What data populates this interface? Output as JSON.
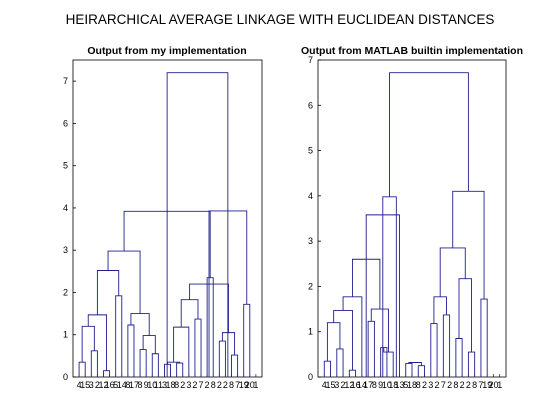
{
  "figure": {
    "title": "HEIRARCHICAL AVERAGE LINKAGE WITH EUCLIDEAN DISTANCES"
  },
  "chart_data": [
    {
      "type": "dendrogram",
      "title": "Output from my implementation",
      "xlabel": "",
      "ylabel": "",
      "ylim": [
        0,
        7.5
      ],
      "yticks": [
        0,
        1,
        2,
        3,
        4,
        5,
        6,
        7
      ],
      "leaf_labels": [
        "4",
        "15",
        "3",
        "2",
        "12",
        "16",
        "5",
        "14",
        "8",
        "17",
        "8",
        "9",
        "10",
        "11",
        "3",
        "18",
        "8",
        "2",
        "3",
        "2",
        "7",
        "2",
        "8",
        "2",
        "2",
        "8",
        "7",
        "19",
        "20",
        "1"
      ],
      "link_color": "#1f1f8f",
      "links": [
        {
          "x": [
            1,
            2
          ],
          "h": 0.35
        },
        {
          "x": [
            3,
            4
          ],
          "h": 0.62
        },
        {
          "x": [
            1.5,
            3.5
          ],
          "h": 1.2
        },
        {
          "x": [
            5,
            6
          ],
          "h": 0.15
        },
        {
          "x": [
            2.5,
            5.5
          ],
          "h": 1.47
        },
        {
          "x": [
            7,
            8
          ],
          "h": 1.92
        },
        {
          "x": [
            4,
            7.5
          ],
          "h": 2.52
        },
        {
          "x": [
            9,
            10
          ],
          "h": 1.23
        },
        {
          "x": [
            11,
            12
          ],
          "h": 0.65
        },
        {
          "x": [
            13,
            14
          ],
          "h": 0.55
        },
        {
          "x": [
            11.5,
            13.5
          ],
          "h": 0.98
        },
        {
          "x": [
            9.5,
            12.5
          ],
          "h": 1.5
        },
        {
          "x": [
            5.75,
            11
          ],
          "h": 2.98
        },
        {
          "x": [
            15,
            16
          ],
          "h": 0.3
        },
        {
          "x": [
            17,
            18
          ],
          "h": 0.33
        },
        {
          "x": [
            15.5,
            17.5
          ],
          "h": 0.35
        },
        {
          "x": [
            16.5,
            19
          ],
          "h": 1.18
        },
        {
          "x": [
            20,
            21
          ],
          "h": 1.37
        },
        {
          "x": [
            17.75,
            20.5
          ],
          "h": 1.83
        },
        {
          "x": [
            22,
            23
          ],
          "h": 2.35
        },
        {
          "x": [
            8.375,
            22.5
          ],
          "h": 3.92
        },
        {
          "x": [
            24,
            25
          ],
          "h": 0.85
        },
        {
          "x": [
            26,
            27
          ],
          "h": 0.52
        },
        {
          "x": [
            24.5,
            26.5
          ],
          "h": 1.05
        },
        {
          "x": [
            28,
            29
          ],
          "h": 1.72
        },
        {
          "x": [
            19.125,
            25.5
          ],
          "h": 2.2
        },
        {
          "x": [
            22.31,
            28.5
          ],
          "h": 3.93
        },
        {
          "x": [
            15.44,
            25.4
          ],
          "h": 7.2
        }
      ]
    },
    {
      "type": "dendrogram",
      "title": "Output from MATLAB builtin implementation",
      "xlabel": "",
      "ylabel": "",
      "ylim": [
        0,
        7
      ],
      "yticks": [
        0,
        1,
        2,
        3,
        4,
        5,
        6,
        7
      ],
      "leaf_labels": [
        "4",
        "15",
        "3",
        "2",
        "12",
        "16",
        "14",
        "17",
        "8",
        "9",
        "10",
        "18",
        "13",
        "5",
        "18",
        "8",
        "2",
        "3",
        "2",
        "7",
        "2",
        "8",
        "2",
        "2",
        "8",
        "7",
        "19",
        "20",
        "1"
      ],
      "link_color": "#1f1f8f",
      "links": [
        {
          "x": [
            1,
            2
          ],
          "h": 0.35
        },
        {
          "x": [
            3,
            4
          ],
          "h": 0.62
        },
        {
          "x": [
            1.5,
            3.5
          ],
          "h": 1.2
        },
        {
          "x": [
            5,
            6
          ],
          "h": 0.15
        },
        {
          "x": [
            2.5,
            5.5
          ],
          "h": 1.47
        },
        {
          "x": [
            4,
            7
          ],
          "h": 1.77
        },
        {
          "x": [
            8,
            9
          ],
          "h": 1.23
        },
        {
          "x": [
            10,
            11
          ],
          "h": 0.65
        },
        {
          "x": [
            10.5,
            12
          ],
          "h": 0.55
        },
        {
          "x": [
            8.5,
            11.25
          ],
          "h": 1.5
        },
        {
          "x": [
            5.5,
            9.875
          ],
          "h": 2.6
        },
        {
          "x": [
            7.69,
            13
          ],
          "h": 3.58
        },
        {
          "x": [
            14,
            15
          ],
          "h": 0.3
        },
        {
          "x": [
            16,
            17
          ],
          "h": 0.25
        },
        {
          "x": [
            14.5,
            16.5
          ],
          "h": 0.32
        },
        {
          "x": [
            18,
            19
          ],
          "h": 1.18
        },
        {
          "x": [
            20,
            21
          ],
          "h": 1.37
        },
        {
          "x": [
            18.5,
            20.5
          ],
          "h": 1.77
        },
        {
          "x": [
            22,
            23
          ],
          "h": 0.85
        },
        {
          "x": [
            24,
            25
          ],
          "h": 0.55
        },
        {
          "x": [
            22.5,
            24.5
          ],
          "h": 2.17
        },
        {
          "x": [
            19.5,
            23.5
          ],
          "h": 2.85
        },
        {
          "x": [
            26,
            27
          ],
          "h": 1.72
        },
        {
          "x": [
            21.5,
            26.5
          ],
          "h": 4.1
        },
        {
          "x": [
            10.34,
            12.5
          ],
          "h": 3.98
        },
        {
          "x": [
            11.42,
            24
          ],
          "h": 6.72
        }
      ]
    }
  ]
}
